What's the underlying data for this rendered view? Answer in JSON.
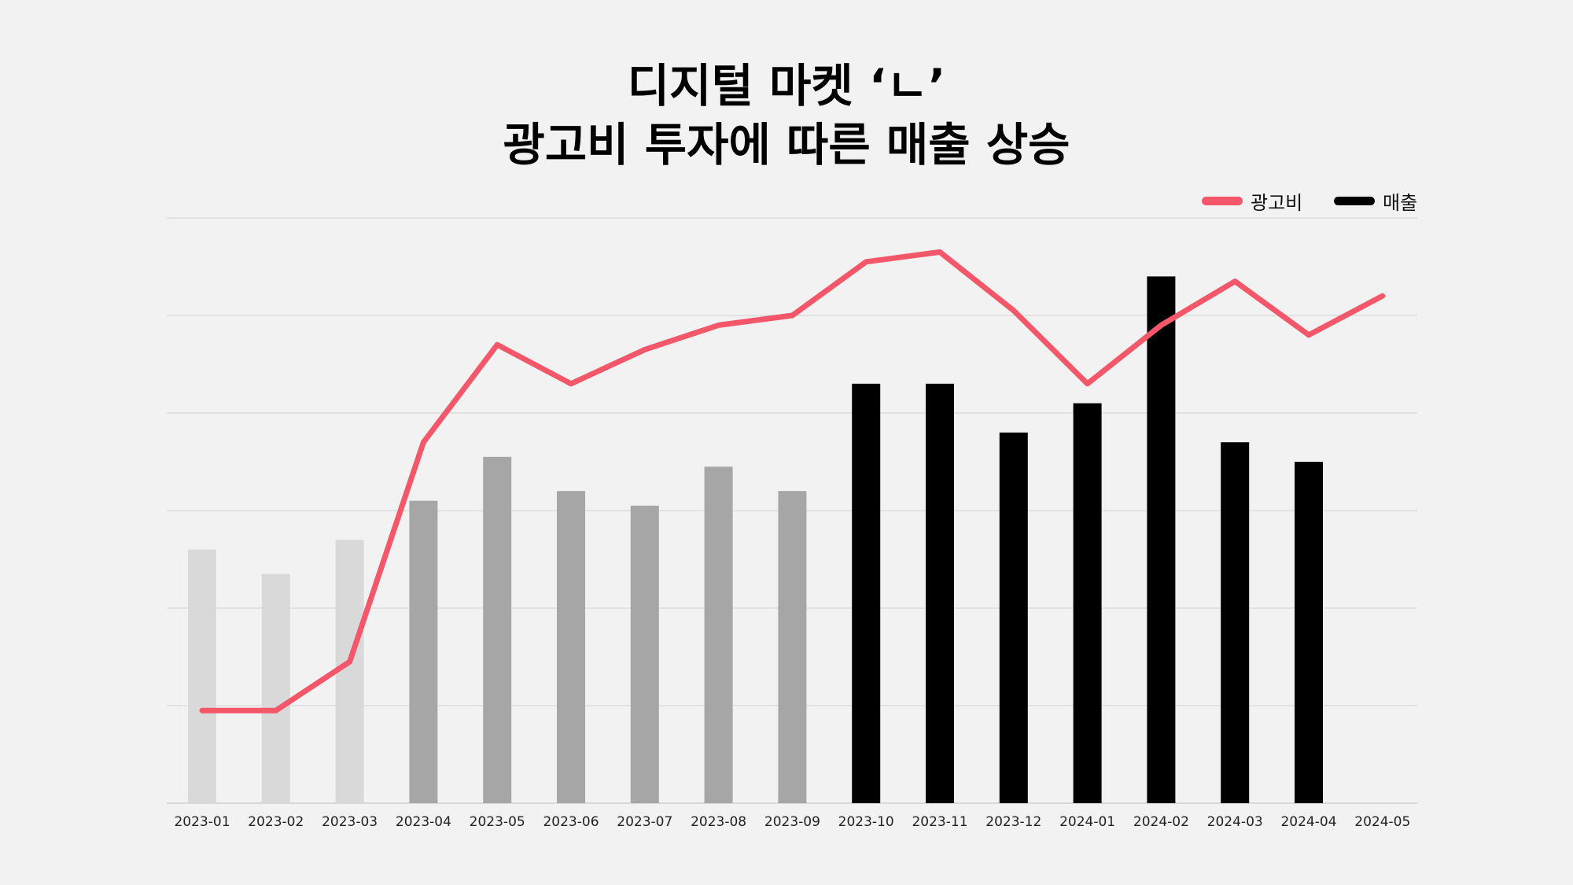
{
  "chart_data": {
    "type": "bar",
    "title": [
      "디지털 마켓 ‘ㄴ’",
      "광고비 투자에 따른 매출 상승"
    ],
    "categories": [
      "2023-01",
      "2023-02",
      "2023-03",
      "2023-04",
      "2023-05",
      "2023-06",
      "2023-07",
      "2023-08",
      "2023-09",
      "2023-10",
      "2023-11",
      "2023-12",
      "2024-01",
      "2024-02",
      "2024-03",
      "2024-04",
      "2024-05"
    ],
    "series": [
      {
        "name": "매출",
        "type": "bar",
        "color": "#000000",
        "values": [
          52,
          47,
          54,
          62,
          71,
          64,
          61,
          69,
          64,
          86,
          86,
          76,
          82,
          108,
          74,
          70,
          null
        ],
        "bar_colors": [
          "#d9d9d9",
          "#d9d9d9",
          "#d9d9d9",
          "#a6a6a6",
          "#a6a6a6",
          "#a6a6a6",
          "#a6a6a6",
          "#a6a6a6",
          "#a6a6a6",
          "#000000",
          "#000000",
          "#000000",
          "#000000",
          "#000000",
          "#000000",
          "#000000",
          "#000000"
        ]
      },
      {
        "name": "광고비",
        "type": "line",
        "color": "#f4566a",
        "values": [
          19,
          19,
          29,
          74,
          94,
          86,
          93,
          98,
          100,
          111,
          113,
          101,
          86,
          98,
          107,
          96,
          104
        ]
      }
    ],
    "ylim": [
      0,
      120
    ],
    "gridlines": [
      0,
      20,
      40,
      60,
      80,
      100,
      120
    ],
    "yaxis_labels_shown": false,
    "grid": true,
    "legend_position": "top-right"
  },
  "legend": {
    "items": [
      {
        "label": "광고비",
        "color": "#f4566a"
      },
      {
        "label": "매출",
        "color": "#000000"
      }
    ]
  }
}
